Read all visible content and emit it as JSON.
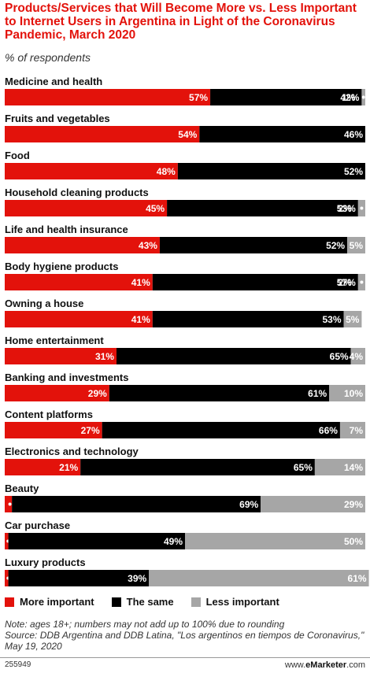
{
  "chart_data": {
    "type": "bar",
    "stacked": true,
    "orientation": "horizontal",
    "title": "Products/Services that Will Become More vs. Less Important to Internet Users in Argentina in Light of the Coronavirus Pandemic, March 2020",
    "subtitle": "% of respondents",
    "categories": [
      "Medicine and health",
      "Fruits and vegetables",
      "Food",
      "Household cleaning products",
      "Life and health insurance",
      "Body hygiene products",
      "Owning a house",
      "Home entertainment",
      "Banking and investments",
      "Content platforms",
      "Electronics and technology",
      "Beauty",
      "Car purchase",
      "Luxury products"
    ],
    "series": [
      {
        "name": "More important",
        "color": "#e3120b",
        "values": [
          57,
          54,
          48,
          45,
          43,
          41,
          41,
          31,
          29,
          27,
          21,
          2,
          1,
          1
        ]
      },
      {
        "name": "The same",
        "color": "#000000",
        "values": [
          42,
          46,
          52,
          53,
          52,
          57,
          53,
          65,
          61,
          66,
          65,
          69,
          49,
          39
        ]
      },
      {
        "name": "Less important",
        "color": "#a6a6a6",
        "values": [
          1,
          0,
          0,
          2,
          5,
          2,
          5,
          4,
          10,
          7,
          14,
          29,
          50,
          61
        ]
      }
    ],
    "xlim": [
      0,
      100
    ],
    "legend_position": "bottom"
  },
  "legend": [
    "More important",
    "The same",
    "Less important"
  ],
  "note": "Note: ages 18+; numbers may not add up to 100% due to rounding\nSource: DDB Argentina and DDB Latina, \"Los argentinos en tiempos de Coronavirus,\" May 19, 2020",
  "footer": {
    "id": "255949",
    "brand_prefix": "www.",
    "brand_name": "eMarketer",
    "brand_suffix": ".com"
  }
}
